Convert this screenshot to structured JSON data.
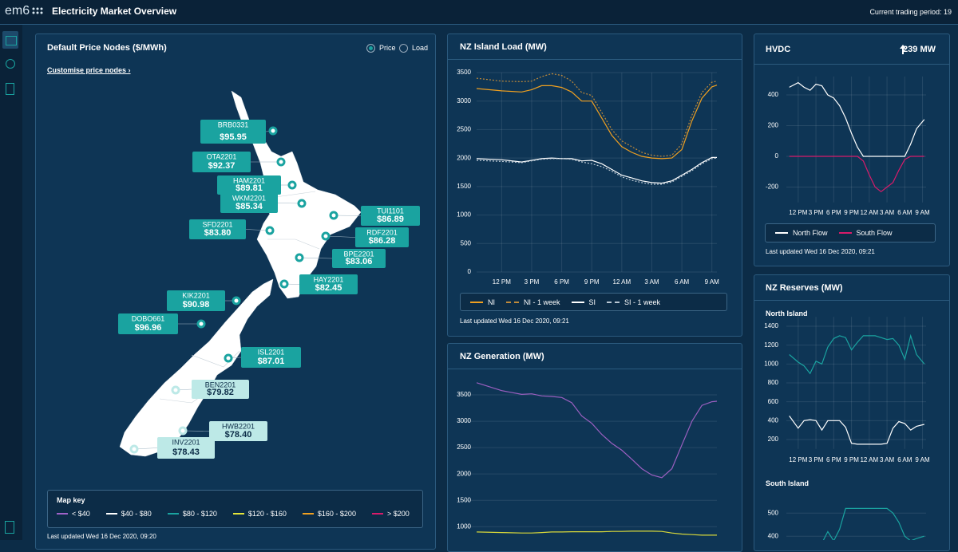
{
  "header": {
    "logo": "em6",
    "title": "Electricity Market Overview",
    "trading_period": "Current trading period: 19"
  },
  "map_panel": {
    "title": "Default Price Nodes ($/MWh)",
    "options": [
      "Price",
      "Load"
    ],
    "link": "Customise price nodes ›",
    "nodes": [
      {
        "name": "BRB0331",
        "price": "$95.95",
        "color": "#1aa3a0"
      },
      {
        "name": "OTA2201",
        "price": "$92.37",
        "color": "#1aa3a0"
      },
      {
        "name": "HAM2201",
        "price": "$89.81",
        "color": "#1aa3a0"
      },
      {
        "name": "WKM2201",
        "price": "$85.34",
        "color": "#1aa3a0"
      },
      {
        "name": "TUI1101",
        "price": "$86.89",
        "color": "#1aa3a0"
      },
      {
        "name": "RDF2201",
        "price": "$86.28",
        "color": "#1aa3a0"
      },
      {
        "name": "SFD2201",
        "price": "$83.80",
        "color": "#1aa3a0"
      },
      {
        "name": "BPE2201",
        "price": "$83.06",
        "color": "#1aa3a0"
      },
      {
        "name": "HAY2201",
        "price": "$82.45",
        "color": "#1aa3a0"
      },
      {
        "name": "KIK2201",
        "price": "$90.98",
        "color": "#1aa3a0"
      },
      {
        "name": "DOBO661",
        "price": "$96.96",
        "color": "#1aa3a0"
      },
      {
        "name": "ISL2201",
        "price": "$87.01",
        "color": "#1aa3a0"
      },
      {
        "name": "BEN2201",
        "price": "$79.82",
        "color": "#bde9e7"
      },
      {
        "name": "HWB2201",
        "price": "$78.40",
        "color": "#bde9e7"
      },
      {
        "name": "INV2201",
        "price": "$78.43",
        "color": "#bde9e7"
      }
    ],
    "map_key": {
      "title": "Map key",
      "items": [
        {
          "label": "< $40",
          "color": "#a062c9"
        },
        {
          "label": "$40 - $80",
          "color": "#ffffff"
        },
        {
          "label": "$80 - $120",
          "color": "#1aa3a0"
        },
        {
          "label": "$120 - $160",
          "color": "#e4e43a"
        },
        {
          "label": "$160 - $200",
          "color": "#f0a020"
        },
        {
          "label": "> $200",
          "color": "#d81b6a"
        }
      ]
    },
    "footnote": "Last updated Wed 16 Dec 2020, 09:20"
  },
  "reserves_panel": {
    "title": "NZ Reserves (MW)"
  },
  "chart_data": [
    {
      "type": "line",
      "title": "NZ Island Load (MW)",
      "footnote": "Last updated Wed 16 Dec 2020, 09:21",
      "grid": true,
      "x": [
        9.5,
        12,
        14,
        15,
        16,
        17,
        18,
        19,
        20,
        21,
        22,
        23,
        24,
        25,
        26,
        27,
        28,
        29,
        30,
        31,
        32,
        33,
        33.5
      ],
      "xlim": [
        9.5,
        33.5
      ],
      "xticks": [
        {
          "value": 12,
          "label": "12 PM"
        },
        {
          "value": 15,
          "label": "3 PM"
        },
        {
          "value": 18,
          "label": "6 PM"
        },
        {
          "value": 21,
          "label": "9 PM"
        },
        {
          "value": 24,
          "label": "12 AM"
        },
        {
          "value": 27,
          "label": "3 AM"
        },
        {
          "value": 30,
          "label": "6 AM"
        },
        {
          "value": 33,
          "label": "9 AM"
        }
      ],
      "ylim": [
        0,
        3500
      ],
      "yticks": [
        0,
        500,
        1000,
        1500,
        2000,
        2500,
        3000,
        3500
      ],
      "series": [
        {
          "name": "NI",
          "color": "#f0a020",
          "dash": false,
          "values": [
            3220,
            3180,
            3160,
            3200,
            3270,
            3270,
            3240,
            3160,
            3000,
            3000,
            2700,
            2400,
            2200,
            2100,
            2030,
            2000,
            1990,
            2000,
            2150,
            2650,
            3050,
            3250,
            3280
          ]
        },
        {
          "name": "NI - 1 week",
          "color": "#c08a3a",
          "dash": true,
          "values": [
            3400,
            3350,
            3340,
            3350,
            3430,
            3480,
            3450,
            3350,
            3150,
            3100,
            2800,
            2500,
            2300,
            2200,
            2100,
            2050,
            2030,
            2050,
            2250,
            2750,
            3150,
            3330,
            3350
          ]
        },
        {
          "name": "SI",
          "color": "#ffffff",
          "dash": false,
          "values": [
            1990,
            1970,
            1930,
            1960,
            1990,
            2000,
            1990,
            1990,
            1950,
            1960,
            1900,
            1800,
            1700,
            1650,
            1600,
            1570,
            1560,
            1600,
            1700,
            1800,
            1920,
            2010,
            2010
          ]
        },
        {
          "name": "SI - 1 week",
          "color": "#b9c7d3",
          "dash": true,
          "values": [
            1960,
            1940,
            1920,
            1950,
            1980,
            1990,
            1990,
            1980,
            1930,
            1900,
            1850,
            1770,
            1670,
            1610,
            1570,
            1540,
            1540,
            1580,
            1680,
            1780,
            1900,
            1990,
            2000
          ]
        }
      ]
    },
    {
      "type": "line",
      "title": "NZ Generation (MW)",
      "grid": true,
      "x": [
        9.5,
        12,
        14,
        15,
        16,
        17,
        18,
        19,
        20,
        21,
        22,
        23,
        24,
        25,
        26,
        27,
        28,
        29,
        30,
        31,
        32,
        33,
        33.5
      ],
      "xlim": [
        7.5,
        33.5
      ],
      "ylim": [
        800,
        3750
      ],
      "yticks": [
        1000,
        1500,
        2000,
        2500,
        3000,
        3500
      ],
      "series": [
        {
          "color": "#9b5fc0",
          "dash": false,
          "values": [
            3730,
            3580,
            3510,
            3520,
            3480,
            3470,
            3450,
            3350,
            3100,
            2960,
            2750,
            2580,
            2450,
            2280,
            2100,
            1980,
            1930,
            2100,
            2550,
            3000,
            3300,
            3370,
            3380
          ]
        },
        {
          "color": "#d8d83a",
          "dash": false,
          "values": [
            900,
            890,
            880,
            880,
            890,
            900,
            900,
            905,
            905,
            905,
            905,
            910,
            910,
            915,
            915,
            915,
            910,
            880,
            860,
            850,
            840,
            840,
            840
          ]
        }
      ]
    },
    {
      "type": "line",
      "title": "HVDC",
      "annotation": "239 MW",
      "footnote": "Last updated Wed 16 Dec 2020, 09:21",
      "grid": true,
      "x": [
        10.5,
        12,
        13,
        14,
        15,
        16,
        17,
        18,
        19,
        20,
        21,
        22,
        23,
        24,
        25,
        26,
        27,
        28,
        29,
        30,
        31,
        32,
        33.3
      ],
      "xlim": [
        10,
        33.6
      ],
      "xticks": [
        {
          "value": 12,
          "label": "12 PM"
        },
        {
          "value": 15,
          "label": "3 PM"
        },
        {
          "value": 18,
          "label": "6 PM"
        },
        {
          "value": 21,
          "label": "9 PM"
        },
        {
          "value": 24,
          "label": "12 AM"
        },
        {
          "value": 27,
          "label": "3 AM"
        },
        {
          "value": 30,
          "label": "6 AM"
        },
        {
          "value": 33,
          "label": "9 AM"
        }
      ],
      "ylim": [
        -300,
        520
      ],
      "yticks": [
        -200,
        0,
        200,
        400
      ],
      "series": [
        {
          "name": "North Flow",
          "color": "#ffffff",
          "dash": false,
          "values": [
            450,
            480,
            450,
            430,
            470,
            460,
            400,
            380,
            330,
            250,
            150,
            60,
            0,
            0,
            0,
            0,
            0,
            0,
            0,
            0,
            80,
            180,
            240
          ]
        },
        {
          "name": "South Flow",
          "color": "#d81b6a",
          "dash": false,
          "values": [
            0,
            0,
            0,
            0,
            0,
            0,
            0,
            0,
            0,
            0,
            0,
            0,
            -30,
            -120,
            -200,
            -230,
            -200,
            -170,
            -90,
            -20,
            0,
            0,
            0
          ]
        }
      ]
    },
    {
      "type": "line",
      "title": "North Island",
      "grid": true,
      "x": [
        10.5,
        12,
        13,
        14,
        15,
        16,
        17,
        18,
        19,
        20,
        21,
        22,
        23,
        24,
        25,
        26,
        27,
        28,
        29,
        30,
        31,
        32,
        33.3
      ],
      "xlim": [
        10,
        33.6
      ],
      "xticks": [
        {
          "value": 12,
          "label": "12 PM"
        },
        {
          "value": 15,
          "label": "3 PM"
        },
        {
          "value": 18,
          "label": "6 PM"
        },
        {
          "value": 21,
          "label": "9 PM"
        },
        {
          "value": 24,
          "label": "12 AM"
        },
        {
          "value": 27,
          "label": "3 AM"
        },
        {
          "value": 30,
          "label": "6 AM"
        },
        {
          "value": 33,
          "label": "9 AM"
        }
      ],
      "ylim": [
        100,
        1500
      ],
      "yticks": [
        200,
        400,
        600,
        800,
        1000,
        1200,
        1400
      ],
      "series": [
        {
          "color": "#1aa3a0",
          "dash": false,
          "values": [
            1100,
            1020,
            980,
            900,
            1030,
            1000,
            1180,
            1270,
            1300,
            1280,
            1150,
            1230,
            1300,
            1300,
            1300,
            1280,
            1260,
            1270,
            1200,
            1050,
            1300,
            1100,
            1000
          ]
        },
        {
          "color": "#ffffff",
          "dash": false,
          "values": [
            450,
            320,
            400,
            410,
            400,
            300,
            400,
            400,
            400,
            330,
            160,
            150,
            150,
            150,
            150,
            150,
            160,
            320,
            390,
            370,
            300,
            340,
            360
          ]
        }
      ]
    },
    {
      "type": "line",
      "title": "South Island",
      "grid": true,
      "x": [
        10.5,
        12,
        13,
        14,
        15,
        16,
        17,
        18,
        19,
        20,
        21,
        22,
        23,
        24,
        25,
        26,
        27,
        28,
        29,
        30,
        31,
        32,
        33.3
      ],
      "xlim": [
        10,
        33.6
      ],
      "ylim": [
        350,
        580
      ],
      "yticks": [
        400,
        500
      ],
      "series": [
        {
          "color": "#1aa3a0",
          "dash": false,
          "values": [
            380,
            370,
            380,
            380,
            360,
            370,
            420,
            380,
            430,
            520,
            520,
            520,
            520,
            520,
            520,
            520,
            520,
            500,
            460,
            400,
            380,
            390,
            400
          ]
        }
      ]
    }
  ]
}
